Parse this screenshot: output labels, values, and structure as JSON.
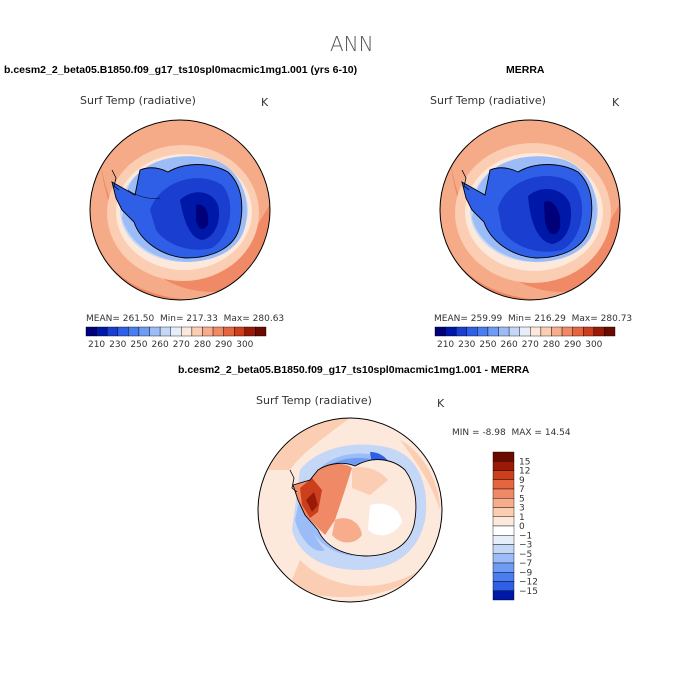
{
  "figure": {
    "title": "ANN"
  },
  "chart_data": [
    {
      "type": "heatmap",
      "projection": "south-polar-stereographic",
      "title": "b.cesm2_2_beta05.B1850.f09_g17_ts10spl0macmic1mg1.001 (yrs 6-10)",
      "variable": "Surf Temp (radiative)",
      "units": "K",
      "stats": {
        "mean_label": "MEAN=",
        "mean": "261.50",
        "min_label": "Min=",
        "min": "217.33",
        "max_label": "Max=",
        "max": "280.63"
      },
      "colorbar": {
        "orientation": "horizontal",
        "levels": [
          "210",
          "230",
          "250",
          "260",
          "270",
          "280",
          "290",
          "300"
        ],
        "colors": [
          "#00007a",
          "#0018a8",
          "#1a3fd0",
          "#2e5fe6",
          "#4a7ef0",
          "#6e9cf4",
          "#9bbcf6",
          "#c4d7f7",
          "#e6eefa",
          "#fde8dc",
          "#fbcdb2",
          "#f7ad8b",
          "#f08a66",
          "#e4663f",
          "#cc3f1c",
          "#9a1a08",
          "#6b0a00"
        ]
      }
    },
    {
      "type": "heatmap",
      "projection": "south-polar-stereographic",
      "title": "MERRA",
      "variable": "Surf Temp (radiative)",
      "units": "K",
      "stats": {
        "mean_label": "MEAN=",
        "mean": "259.99",
        "min_label": "Min=",
        "min": "216.29",
        "max_label": "Max=",
        "max": "280.73"
      },
      "colorbar": {
        "orientation": "horizontal",
        "levels": [
          "210",
          "230",
          "250",
          "260",
          "270",
          "280",
          "290",
          "300"
        ],
        "colors": [
          "#00007a",
          "#0018a8",
          "#1a3fd0",
          "#2e5fe6",
          "#4a7ef0",
          "#6e9cf4",
          "#9bbcf6",
          "#c4d7f7",
          "#e6eefa",
          "#fde8dc",
          "#fbcdb2",
          "#f7ad8b",
          "#f08a66",
          "#e4663f",
          "#cc3f1c",
          "#9a1a08",
          "#6b0a00"
        ]
      }
    },
    {
      "type": "heatmap",
      "projection": "south-polar-stereographic",
      "title": "b.cesm2_2_beta05.B1850.f09_g17_ts10spl0macmic1mg1.001 - MERRA",
      "variable": "Surf Temp (radiative)",
      "units": "K",
      "stats": {
        "min_label": "MIN =",
        "min": "-8.98",
        "max_label": "MAX =",
        "max": "14.54"
      },
      "colorbar": {
        "orientation": "vertical",
        "levels": [
          "15",
          "12",
          "9",
          "7",
          "5",
          "3",
          "1",
          "0",
          "−1",
          "−3",
          "−5",
          "−7",
          "−9",
          "−12",
          "−15"
        ],
        "colors": [
          "#6b0a00",
          "#9a1a08",
          "#cc3f1c",
          "#e4663f",
          "#f08a66",
          "#f7ad8b",
          "#fbcdb2",
          "#fde8dc",
          "#ffffff",
          "#e6eefa",
          "#c4d7f7",
          "#9bbcf6",
          "#6e9cf4",
          "#4a7ef0",
          "#2e5fe6",
          "#0018a8"
        ]
      }
    }
  ]
}
